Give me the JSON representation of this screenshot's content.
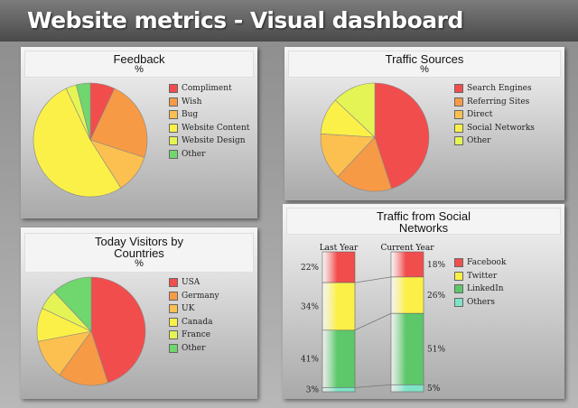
{
  "header": {
    "title": "Website metrics - Visual dashboard"
  },
  "colors": {
    "red": "#f24d4d",
    "orange": "#f79a45",
    "light_orange": "#fbc04f",
    "yellow": "#fbf048",
    "lime": "#e5f455",
    "green": "#70d66e",
    "facebook": "#f24d4d",
    "twitter": "#fbf048",
    "linkedin": "#5cc86a",
    "others": "#7fe3c8"
  },
  "panels": {
    "feedback": {
      "title": "Feedback",
      "unit": "%"
    },
    "traffic_sources": {
      "title": "Traffic Sources",
      "unit": "%"
    },
    "visitors": {
      "title_line1": "Today Visitors by",
      "title_line2": "Countries",
      "unit": "%"
    },
    "social": {
      "title_line1": "Traffic from Social",
      "title_line2": "Networks"
    }
  },
  "chart_data": [
    {
      "id": "feedback",
      "type": "pie",
      "title": "Feedback",
      "unit": "%",
      "legend_position": "right",
      "categories": [
        "Compliment",
        "Wish",
        "Bug",
        "Website Content",
        "Website Design",
        "Other"
      ],
      "values": [
        7,
        23,
        11,
        52,
        3,
        4
      ]
    },
    {
      "id": "traffic_sources",
      "type": "pie",
      "title": "Traffic Sources",
      "unit": "%",
      "legend_position": "right",
      "categories": [
        "Search Engines",
        "Referring Sites",
        "Direct",
        "Social Networks",
        "Other"
      ],
      "values": [
        45,
        17,
        14,
        11,
        13
      ]
    },
    {
      "id": "visitors",
      "type": "pie",
      "title": "Today Visitors by Countries",
      "unit": "%",
      "legend_position": "right",
      "categories": [
        "USA",
        "Germany",
        "UK",
        "Canada",
        "France",
        "Other"
      ],
      "values": [
        45,
        15,
        12,
        10,
        6,
        12
      ]
    },
    {
      "id": "social",
      "type": "bar",
      "stacked": true,
      "normalized": true,
      "title": "Traffic from Social Networks",
      "legend_position": "right",
      "categories": [
        "Last Year",
        "Current Year"
      ],
      "series": [
        {
          "name": "Facebook",
          "values": [
            22,
            18
          ]
        },
        {
          "name": "Twitter",
          "values": [
            34,
            26
          ]
        },
        {
          "name": "LinkedIn",
          "values": [
            41,
            51
          ]
        },
        {
          "name": "Others",
          "values": [
            3,
            5
          ]
        }
      ],
      "value_labels": [
        [
          "22%",
          "34%",
          "41%",
          "3%"
        ],
        [
          "18%",
          "26%",
          "51%",
          "5%"
        ]
      ]
    }
  ]
}
